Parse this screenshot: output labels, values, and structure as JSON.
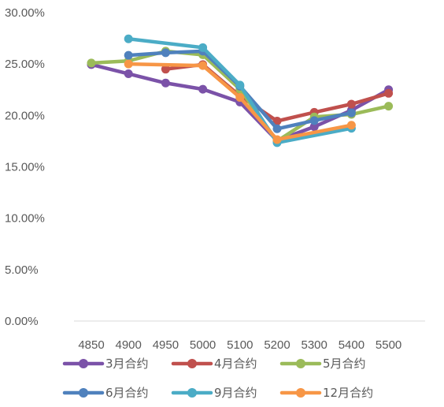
{
  "chart_data": {
    "type": "line",
    "title": "",
    "xlabel": "",
    "ylabel": "",
    "categories": [
      "4850",
      "4900",
      "4950",
      "5000",
      "5100",
      "5200",
      "5300",
      "5400",
      "5500"
    ],
    "ylim": [
      0,
      0.3
    ],
    "yticks": [
      "0.00%",
      "5.00%",
      "10.00%",
      "15.00%",
      "20.00%",
      "25.00%",
      "30.00%"
    ],
    "grid": false,
    "legend_position": "bottom",
    "series": [
      {
        "name": "3月合约",
        "color": "#7B52A8",
        "values": [
          0.2495,
          0.2405,
          0.2315,
          0.2255,
          0.213,
          0.1755,
          0.189,
          0.205,
          0.225
        ]
      },
      {
        "name": "4月合约",
        "color": "#C0504D",
        "values": [
          null,
          null,
          0.245,
          0.2495,
          0.219,
          0.1945,
          0.203,
          0.211,
          0.2215
        ]
      },
      {
        "name": "5月合约",
        "color": "#9BBB59",
        "values": [
          0.251,
          0.253,
          0.2625,
          0.259,
          0.2255,
          0.175,
          0.1985,
          0.201,
          0.209
        ]
      },
      {
        "name": "6月合约",
        "color": "#4F81BD",
        "values": [
          null,
          0.2585,
          0.261,
          0.2625,
          0.2285,
          0.187,
          0.195,
          0.2025,
          null
        ]
      },
      {
        "name": "9月合约",
        "color": "#4BACC6",
        "values": [
          null,
          0.2745,
          null,
          0.266,
          0.2295,
          0.1735,
          null,
          0.1875,
          null
        ]
      },
      {
        "name": "12月合约",
        "color": "#F79646",
        "values": [
          null,
          0.25,
          null,
          0.2485,
          0.2175,
          0.1765,
          null,
          0.1905,
          null
        ]
      }
    ]
  }
}
